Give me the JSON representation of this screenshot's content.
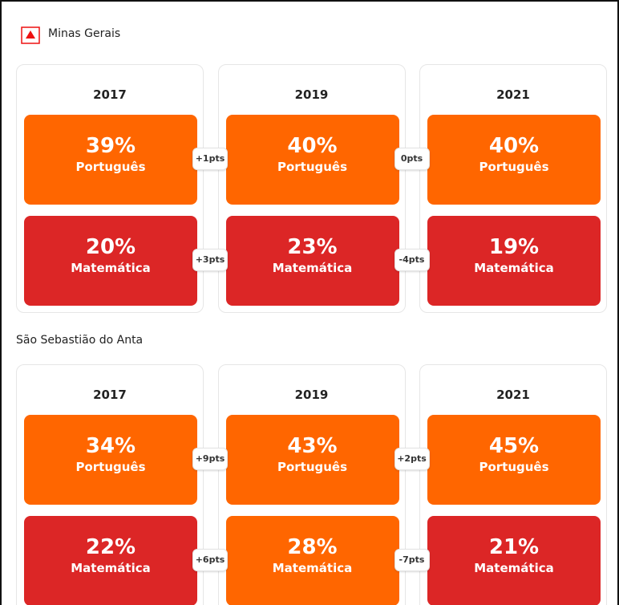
{
  "sections": [
    {
      "title": "Minas Gerais",
      "years": [
        {
          "year": "2017",
          "cells": [
            {
              "value": "39%",
              "subject": "Português",
              "color": "#ff6600"
            },
            {
              "value": "20%",
              "subject": "Matemática",
              "color": "#dc2626"
            }
          ]
        },
        {
          "year": "2019",
          "cells": [
            {
              "value": "40%",
              "subject": "Português",
              "color": "#ff6600"
            },
            {
              "value": "23%",
              "subject": "Matemática",
              "color": "#dc2626"
            }
          ]
        },
        {
          "year": "2021",
          "cells": [
            {
              "value": "40%",
              "subject": "Português",
              "color": "#ff6600"
            },
            {
              "value": "19%",
              "subject": "Matemática",
              "color": "#dc2626"
            }
          ]
        }
      ],
      "deltas": [
        [
          "+1pts",
          "+3pts"
        ],
        [
          "0pts",
          "-4pts"
        ]
      ]
    },
    {
      "title": "São Sebastião do Anta",
      "years": [
        {
          "year": "2017",
          "cells": [
            {
              "value": "34%",
              "subject": "Português",
              "color": "#ff6600"
            },
            {
              "value": "22%",
              "subject": "Matemática",
              "color": "#dc2626"
            }
          ]
        },
        {
          "year": "2019",
          "cells": [
            {
              "value": "43%",
              "subject": "Português",
              "color": "#ff6600"
            },
            {
              "value": "28%",
              "subject": "Matemática",
              "color": "#ff6600"
            }
          ]
        },
        {
          "year": "2021",
          "cells": [
            {
              "value": "45%",
              "subject": "Português",
              "color": "#ff6600"
            },
            {
              "value": "21%",
              "subject": "Matemática",
              "color": "#dc2626"
            }
          ]
        }
      ],
      "deltas": [
        [
          "+9pts",
          "+6pts"
        ],
        [
          "+2pts",
          "-7pts"
        ]
      ]
    }
  ]
}
